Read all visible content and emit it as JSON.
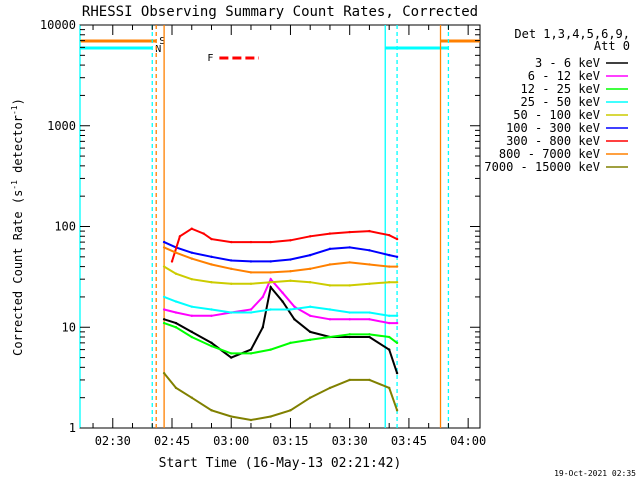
{
  "chart_data": {
    "type": "line",
    "title": "RHESSI Observing Summary Count Rates, Corrected",
    "xlabel": "Start Time (16-May-13 02:21:42)",
    "ylabel": "Corrected Count Rate (s^-1 detector^-1)",
    "ylabel_parts": [
      "Corrected Count Rate (s",
      "-1",
      " detector",
      "-1",
      ")"
    ],
    "yscale": "log",
    "ylim": [
      1,
      10000
    ],
    "xlim": [
      "02:21:42",
      "04:03:00"
    ],
    "x_ticks": [
      "02:30",
      "02:45",
      "03:00",
      "03:15",
      "03:30",
      "03:45",
      "04:00"
    ],
    "y_ticks": [
      "1",
      "10",
      "100",
      "1000",
      "10000"
    ],
    "legend_header": [
      "Det 1,3,4,5,6,9,",
      "Att 0"
    ],
    "legend_location": "top-right",
    "flag_labels": {
      "saa": "S",
      "night": "N",
      "flare": "F"
    },
    "footer_date": "19-Oct-2021 02:35",
    "series": [
      {
        "name": "3 - 6 keV",
        "color": "#000000",
        "x": [
          "02:43",
          "02:46",
          "02:50",
          "02:55",
          "03:00",
          "03:05",
          "03:08",
          "03:10",
          "03:13",
          "03:16",
          "03:20",
          "03:25",
          "03:30",
          "03:35",
          "03:40",
          "03:42"
        ],
        "y": [
          12,
          11,
          9,
          7,
          5,
          6,
          10,
          25,
          18,
          12,
          9,
          8,
          8,
          8,
          6,
          3.5
        ]
      },
      {
        "name": "6 - 12 keV",
        "color": "#ff00ff",
        "x": [
          "02:43",
          "02:46",
          "02:50",
          "02:55",
          "03:00",
          "03:05",
          "03:08",
          "03:10",
          "03:13",
          "03:16",
          "03:20",
          "03:25",
          "03:30",
          "03:35",
          "03:40",
          "03:42"
        ],
        "y": [
          15,
          14,
          13,
          13,
          14,
          15,
          20,
          30,
          22,
          16,
          13,
          12,
          12,
          12,
          11,
          11
        ]
      },
      {
        "name": "12 - 25 keV",
        "color": "#00ff00",
        "x": [
          "02:43",
          "02:46",
          "02:50",
          "02:55",
          "03:00",
          "03:05",
          "03:10",
          "03:15",
          "03:20",
          "03:25",
          "03:30",
          "03:35",
          "03:40",
          "03:42"
        ],
        "y": [
          11,
          10,
          8,
          6.5,
          5.5,
          5.5,
          6,
          7,
          7.5,
          8,
          8.5,
          8.5,
          8,
          7
        ]
      },
      {
        "name": "25 - 50 keV",
        "color": "#00ffff",
        "x": [
          "02:43",
          "02:46",
          "02:50",
          "02:55",
          "03:00",
          "03:05",
          "03:10",
          "03:15",
          "03:20",
          "03:25",
          "03:30",
          "03:35",
          "03:40",
          "03:42"
        ],
        "y": [
          20,
          18,
          16,
          15,
          14,
          14,
          15,
          15,
          16,
          15,
          14,
          14,
          13,
          13
        ]
      },
      {
        "name": "50 - 100 keV",
        "color": "#cccc00",
        "x": [
          "02:43",
          "02:46",
          "02:50",
          "02:55",
          "03:00",
          "03:05",
          "03:10",
          "03:15",
          "03:20",
          "03:25",
          "03:30",
          "03:35",
          "03:40",
          "03:42"
        ],
        "y": [
          40,
          34,
          30,
          28,
          27,
          27,
          28,
          29,
          28,
          26,
          26,
          27,
          28,
          28
        ]
      },
      {
        "name": "100 - 300 keV",
        "color": "#0000ff",
        "x": [
          "02:43",
          "02:46",
          "02:50",
          "02:55",
          "03:00",
          "03:05",
          "03:10",
          "03:15",
          "03:20",
          "03:25",
          "03:30",
          "03:35",
          "03:40",
          "03:42"
        ],
        "y": [
          70,
          62,
          55,
          50,
          46,
          45,
          45,
          47,
          52,
          60,
          62,
          58,
          52,
          50
        ]
      },
      {
        "name": "300 - 800 keV",
        "color": "#ff0000",
        "x": [
          "02:45",
          "02:47",
          "02:50",
          "02:53",
          "02:55",
          "03:00",
          "03:05",
          "03:10",
          "03:15",
          "03:20",
          "03:25",
          "03:30",
          "03:35",
          "03:40",
          "03:42"
        ],
        "y": [
          45,
          80,
          95,
          85,
          75,
          70,
          70,
          70,
          73,
          80,
          85,
          88,
          90,
          82,
          75
        ]
      },
      {
        "name": "800 - 7000 keV",
        "color": "#ff8000",
        "x": [
          "02:43",
          "02:46",
          "02:50",
          "02:55",
          "03:00",
          "03:05",
          "03:10",
          "03:15",
          "03:20",
          "03:25",
          "03:30",
          "03:35",
          "03:40",
          "03:42"
        ],
        "y": [
          62,
          55,
          48,
          42,
          38,
          35,
          35,
          36,
          38,
          42,
          44,
          42,
          40,
          40
        ]
      },
      {
        "name": "7000 - 15000 keV",
        "color": "#808000",
        "x": [
          "02:43",
          "02:46",
          "02:50",
          "02:55",
          "03:00",
          "03:05",
          "03:10",
          "03:15",
          "03:20",
          "03:25",
          "03:30",
          "03:35",
          "03:40",
          "03:42"
        ],
        "y": [
          3.5,
          2.5,
          2,
          1.5,
          1.3,
          1.2,
          1.3,
          1.5,
          2,
          2.5,
          3,
          3,
          2.5,
          1.5
        ]
      }
    ],
    "flags": {
      "saa": {
        "color": "#ff8000",
        "intervals": [
          [
            "02:21:42",
            "02:41:00"
          ],
          [
            "03:53:00",
            "04:03:00"
          ]
        ]
      },
      "night": {
        "color": "#00ffff",
        "intervals": [
          [
            "02:21:42",
            "02:40:00"
          ],
          [
            "03:39:00",
            "03:55:00"
          ]
        ]
      },
      "flare": {
        "color": "#ff0000",
        "intervals": [
          [
            "02:57:00",
            "03:07:00"
          ]
        ]
      }
    },
    "vertical_markers": [
      {
        "time": "02:21:42",
        "color": "#00ffff",
        "style": "solid"
      },
      {
        "time": "02:40:00",
        "color": "#00ffff",
        "style": "dashed"
      },
      {
        "time": "02:41:00",
        "color": "#ff8000",
        "style": "dashed"
      },
      {
        "time": "02:43:00",
        "color": "#ff8000",
        "style": "solid"
      },
      {
        "time": "03:39:00",
        "color": "#00ffff",
        "style": "solid"
      },
      {
        "time": "03:42:00",
        "color": "#00ffff",
        "style": "dashed"
      },
      {
        "time": "03:53:00",
        "color": "#ff8000",
        "style": "solid"
      },
      {
        "time": "03:55:00",
        "color": "#00ffff",
        "style": "dashed"
      }
    ]
  }
}
